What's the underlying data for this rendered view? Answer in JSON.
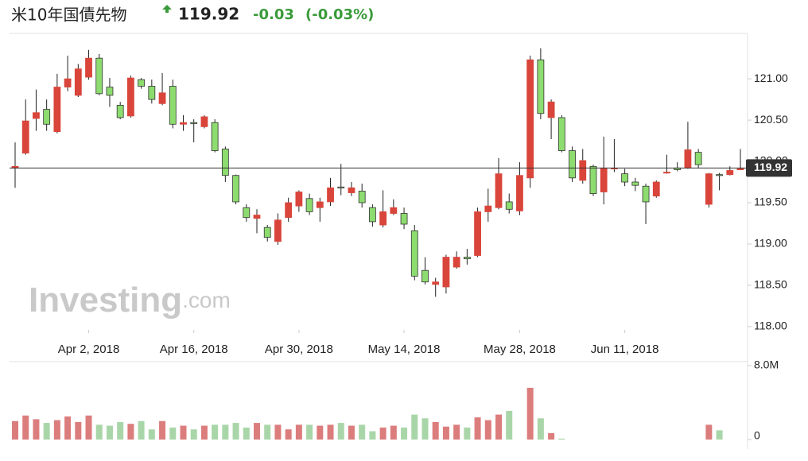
{
  "chart_data": {
    "type": "candlestick",
    "title": "米10年国債先物",
    "last_price": 119.92,
    "change": -0.03,
    "change_pct_label": "(-0.03%)",
    "watermark": [
      "Investing",
      ".com"
    ],
    "up_color": "#d9453a",
    "down_color": "#8ddc6f",
    "volume_up_color": "#dc7d7d",
    "volume_down_color": "#a9d6a9",
    "open": [
      119.92,
      120.1,
      120.52,
      120.63,
      120.36,
      120.9,
      120.8,
      121.02,
      121.25,
      120.9,
      120.68,
      120.55,
      120.99,
      120.91,
      120.7,
      120.91,
      120.45,
      120.47,
      120.42,
      120.47,
      120.15,
      119.83,
      119.44,
      119.31,
      119.2,
      119.03,
      119.32,
      119.46,
      119.55,
      119.44,
      119.51,
      119.69,
      119.62,
      119.64,
      119.44,
      119.23,
      119.37,
      119.37,
      119.16,
      118.68,
      118.51,
      118.48,
      118.72,
      118.84,
      118.86,
      119.39,
      119.44,
      119.51,
      119.4,
      119.8,
      121.23,
      120.53,
      120.53,
      120.13,
      119.77,
      119.94,
      119.63,
      119.91,
      119.85,
      119.75,
      119.7,
      119.58,
      119.86,
      119.92,
      119.92,
      120.11,
      119.48,
      119.84,
      119.84,
      119.9
    ],
    "close": [
      119.94,
      120.49,
      120.59,
      120.45,
      120.9,
      121.0,
      121.12,
      121.25,
      120.82,
      120.8,
      120.53,
      121.01,
      120.91,
      120.75,
      120.83,
      120.45,
      120.47,
      120.46,
      120.54,
      120.13,
      119.83,
      119.51,
      119.32,
      119.35,
      119.08,
      119.29,
      119.5,
      119.63,
      119.39,
      119.51,
      119.68,
      119.68,
      119.68,
      119.5,
      119.27,
      119.39,
      119.44,
      119.24,
      118.61,
      118.54,
      118.54,
      118.84,
      118.84,
      118.82,
      119.39,
      119.46,
      119.85,
      119.42,
      119.83,
      121.23,
      120.58,
      120.72,
      120.13,
      119.8,
      120.01,
      119.61,
      119.92,
      119.92,
      119.75,
      119.71,
      119.51,
      119.75,
      119.87,
      119.9,
      120.14,
      119.96,
      119.85,
      119.83,
      119.89,
      119.91
    ],
    "high": [
      120.23,
      120.75,
      120.87,
      120.75,
      121.06,
      121.28,
      121.18,
      121.35,
      121.3,
      121.01,
      120.72,
      121.04,
      121.01,
      120.99,
      121.07,
      120.99,
      120.56,
      120.51,
      120.56,
      120.51,
      120.18,
      119.84,
      119.48,
      119.42,
      119.23,
      119.37,
      119.56,
      119.65,
      119.61,
      119.56,
      119.8,
      119.97,
      119.75,
      119.73,
      119.48,
      119.65,
      119.54,
      119.44,
      119.23,
      118.84,
      118.59,
      118.87,
      118.91,
      118.94,
      119.44,
      119.67,
      120.04,
      119.61,
      119.99,
      121.28,
      121.37,
      120.75,
      120.56,
      120.18,
      120.15,
      119.96,
      120.3,
      120.27,
      119.91,
      119.8,
      119.73,
      119.77,
      120.08,
      119.99,
      120.48,
      120.15,
      119.86,
      119.86,
      119.94,
      120.15
    ],
    "low": [
      119.68,
      120.08,
      120.37,
      120.37,
      120.34,
      120.85,
      120.78,
      120.99,
      120.8,
      120.66,
      120.51,
      120.53,
      120.88,
      120.7,
      120.68,
      120.4,
      120.37,
      120.23,
      120.4,
      120.11,
      119.75,
      119.48,
      119.27,
      119.13,
      119.03,
      118.99,
      119.27,
      119.39,
      119.35,
      119.27,
      119.46,
      119.59,
      119.58,
      119.44,
      119.21,
      119.2,
      119.35,
      119.18,
      118.56,
      118.51,
      118.36,
      118.4,
      118.7,
      118.75,
      118.84,
      119.27,
      119.42,
      119.37,
      119.35,
      119.68,
      120.51,
      120.27,
      120.11,
      119.75,
      119.73,
      119.58,
      119.48,
      119.87,
      119.7,
      119.64,
      119.24,
      119.56,
      119.85,
      119.88,
      119.91,
      119.92,
      119.44,
      119.65,
      119.83,
      119.9
    ],
    "volume": [
      2.0,
      2.6,
      2.2,
      1.8,
      2.1,
      2.5,
      1.9,
      2.6,
      1.6,
      1.5,
      1.9,
      1.7,
      2.0,
      1.1,
      2.0,
      1.3,
      1.5,
      1.1,
      1.5,
      1.6,
      1.6,
      1.8,
      1.3,
      1.8,
      1.6,
      1.6,
      1.1,
      1.6,
      1.6,
      1.5,
      1.6,
      1.8,
      1.5,
      1.6,
      0.9,
      1.3,
      1.5,
      1.3,
      2.7,
      2.3,
      1.9,
      1.4,
      1.6,
      1.3,
      2.4,
      2.1,
      2.7,
      3.1,
      null,
      5.6,
      2.3,
      0.7,
      0.1,
      null,
      null,
      null,
      null,
      null,
      null,
      null,
      null,
      null,
      null,
      null,
      null,
      null,
      1.6,
      1.0,
      null,
      null
    ],
    "xlim": [
      -0.53,
      69.68
    ],
    "xticks": [
      {
        "value": 7,
        "label": "Apr 2, 2018"
      },
      {
        "value": 17,
        "label": "Apr 16, 2018"
      },
      {
        "value": 27,
        "label": "Apr 30, 2018"
      },
      {
        "value": 37,
        "label": "May 14, 2018"
      },
      {
        "value": 48,
        "label": "May 28, 2018"
      },
      {
        "value": 58,
        "label": "Jun 11, 2018"
      }
    ],
    "ylim": [
      117.96,
      121.55
    ],
    "yticks": [
      {
        "value": 118,
        "label": "118.00"
      },
      {
        "value": 118.5,
        "label": "118.50"
      },
      {
        "value": 119,
        "label": "119.00"
      },
      {
        "value": 119.5,
        "label": "119.50"
      },
      {
        "value": 120,
        "label": "120.00"
      },
      {
        "value": 120.5,
        "label": "120.50"
      },
      {
        "value": 121,
        "label": "121.00"
      }
    ],
    "volume_lim": [
      0,
      8.43
    ],
    "volume_ticks": [
      0,
      {
        "value": 8,
        "label": "8.0M"
      }
    ]
  }
}
